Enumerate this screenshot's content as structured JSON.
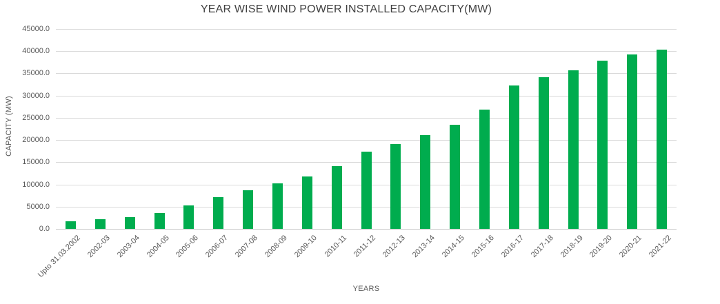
{
  "chart_data": {
    "type": "bar",
    "title": "YEAR WISE WIND POWER INSTALLED CAPACITY(MW)",
    "xlabel": "YEARS",
    "ylabel": "CAPACITY (MW)",
    "categories": [
      "Upto 31.03.2002",
      "2002-03",
      "2003-04",
      "2004-05",
      "2005-06",
      "2006-07",
      "2007-08",
      "2008-09",
      "2009-10",
      "2010-11",
      "2011-12",
      "2012-13",
      "2013-14",
      "2014-15",
      "2015-16",
      "2016-17",
      "2017-18",
      "2018-19",
      "2019-20",
      "2020-21",
      "2021-22"
    ],
    "values": [
      1667,
      2100,
      2650,
      3640,
      5350,
      7095,
      8760,
      10245,
      11810,
      14160,
      17355,
      19055,
      21140,
      23450,
      26870,
      32280,
      34145,
      35725,
      37790,
      39295,
      40360
    ],
    "ylim": [
      0,
      45000
    ],
    "ytick_step": 5000,
    "ytick_labels": [
      "0.0",
      "5000.0",
      "10000.0",
      "15000.0",
      "20000.0",
      "25000.0",
      "30000.0",
      "35000.0",
      "40000.0",
      "45000.0"
    ],
    "grid": true,
    "legend": "none",
    "bar_color": "#00AC4E",
    "gridline_color": "#D9D9D9",
    "axis_line_color": "#C9C9C9",
    "tick_text_color": "#595959",
    "title_color": "#404040"
  }
}
